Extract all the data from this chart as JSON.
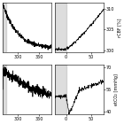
{
  "fig_width": 1.4,
  "fig_height": 1.4,
  "dpi": 100,
  "top_left": {
    "xlim": [
      265,
      378
    ],
    "ylim": [
      0.0,
      1.0
    ],
    "xticks": [
      300,
      350
    ],
    "yticks": [],
    "vline_x": 271,
    "shade_start": 265,
    "shade_end": 273
  },
  "top_right": {
    "xlim": [
      -22,
      75
    ],
    "ylim": [
      299.5,
      311.5
    ],
    "xticks": [
      0,
      50
    ],
    "yticks": [
      300,
      305,
      310
    ],
    "ylabel": "rCBF [%]",
    "shade_start": -22,
    "shade_end": 0
  },
  "bottom_left": {
    "xlim": [
      265,
      378
    ],
    "ylim": [
      0.0,
      1.0
    ],
    "xticks": [
      300,
      350
    ],
    "yticks": [],
    "shade_start": 265,
    "shade_end": 273
  },
  "bottom_right": {
    "xlim": [
      -22,
      75
    ],
    "ylim": [
      38,
      72
    ],
    "xticks": [
      0,
      50
    ],
    "yticks": [
      40,
      55,
      70
    ],
    "ylabel": "etCO₂ [mmHg]",
    "shade_start": -22,
    "shade_end": 0
  },
  "line_color": "#000000",
  "line_width": 0.5,
  "shade_color": "#aaaaaa",
  "shade_alpha": 0.4,
  "tick_fontsize": 3.5,
  "ylabel_fontsize": 3.5
}
